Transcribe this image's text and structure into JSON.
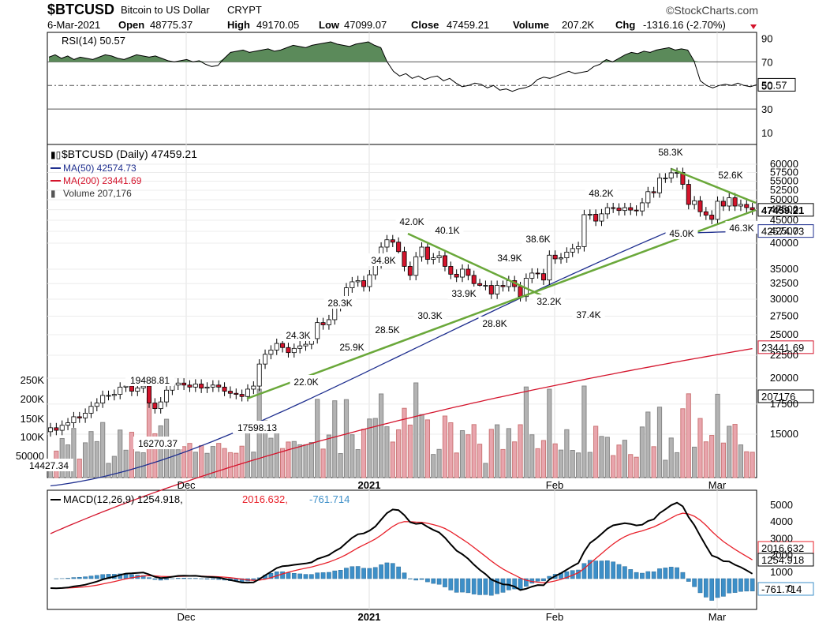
{
  "header": {
    "symbol": "$BTCUSD",
    "name": "Bitcoin to US Dollar",
    "exchange": "CRYPT",
    "brand": "©StockCharts.com",
    "date": "6-Mar-2021",
    "open_label": "Open",
    "open": "48775.37",
    "high_label": "High",
    "high": "49170.05",
    "low_label": "Low",
    "low": "47099.07",
    "close_label": "Close",
    "close": "47459.21",
    "volume_label": "Volume",
    "volume": "207.2K",
    "chg_label": "Chg",
    "chg": "-1316.16 (-2.70%)"
  },
  "colors": {
    "up": "#ffffff",
    "down": "#d4142c",
    "wick": "#000000",
    "ma50": "#1f2f8f",
    "ma200": "#d4142c",
    "trend": "#6aa83a",
    "rsi_fill": "#5b8a5a",
    "vol_up": "#b3b3b3",
    "vol_down": "#e8a5ad",
    "macd_line": "#000000",
    "signal_line": "#e8202a",
    "hist": "#3d8fc8"
  },
  "chart_data": [
    {
      "type": "line",
      "panel": "rsi",
      "legend": "RSI(14) 50.57",
      "ylim": [
        0,
        100
      ],
      "yticks": [
        "90",
        "70",
        "50",
        "30",
        "10"
      ],
      "levels": [
        70,
        30
      ],
      "last_label": "50.57",
      "values": [
        74,
        76,
        73,
        75,
        72,
        74,
        73,
        72,
        74,
        76,
        75,
        73,
        72,
        74,
        76,
        75,
        74,
        75,
        73,
        71,
        70,
        71,
        72,
        70,
        71,
        68,
        66,
        67,
        73,
        78,
        79,
        80,
        78,
        79,
        80,
        81,
        79,
        80,
        82,
        84,
        83,
        82,
        84,
        85,
        86,
        87,
        85,
        84,
        83,
        85,
        86,
        87,
        84,
        82,
        70,
        62,
        58,
        60,
        56,
        58,
        55,
        57,
        58,
        54,
        56,
        52,
        49,
        50,
        52,
        51,
        48,
        50,
        46,
        47,
        45,
        47,
        48,
        50,
        55,
        57,
        56,
        58,
        60,
        62,
        60,
        61,
        62,
        66,
        68,
        72,
        70,
        73,
        76,
        78,
        77,
        79,
        78,
        80,
        81,
        82,
        80,
        81,
        80,
        71,
        54,
        50,
        48,
        50,
        51,
        50,
        52,
        50,
        49,
        50.57
      ]
    },
    {
      "type": "candlestick",
      "panel": "price",
      "legend": {
        "title": "$BTCUSD (Daily) 47459.21",
        "ma50": "MA(50) 42574.73",
        "ma200": "MA(200) 23441.69",
        "volume": "Volume 207,176"
      },
      "scale": "log",
      "yticks": [
        "60000",
        "57500",
        "55000",
        "52500",
        "50000",
        "47500",
        "45000",
        "42500",
        "40000",
        "35000",
        "32500",
        "30000",
        "27500",
        "25000",
        "22500",
        "20000",
        "17500",
        "15000"
      ],
      "volume_ticks": [
        "250K",
        "200K",
        "150K",
        "100K",
        "50000"
      ],
      "x_labels": [
        "Dec",
        "2021",
        "Feb",
        "Mar"
      ],
      "last_labels": {
        "close": "47459.21",
        "ma50": "42574.73",
        "ma200": "23441.69",
        "volume": "207176"
      },
      "annotations": [
        "14427.34",
        "19488.81",
        "16270.37",
        "17598.13",
        "22.0K",
        "24.3K",
        "25.9K",
        "28.3K",
        "28.5K",
        "34.8K",
        "42.0K",
        "30.3K",
        "40.1K",
        "33.9K",
        "28.8K",
        "34.9K",
        "32.2K",
        "38.6K",
        "37.4K",
        "48.2K",
        "58.3K",
        "45.0K",
        "52.6K",
        "46.3K"
      ],
      "close": [
        15500,
        15300,
        15700,
        15900,
        16400,
        16300,
        16700,
        17300,
        17600,
        18300,
        18300,
        18400,
        19100,
        19200,
        18700,
        19000,
        19200,
        17600,
        17100,
        17700,
        18800,
        19300,
        19500,
        19300,
        19100,
        19400,
        19000,
        19100,
        19300,
        19100,
        18700,
        18500,
        18400,
        18200,
        18900,
        19200,
        21500,
        22600,
        23100,
        23900,
        23400,
        22800,
        23300,
        23600,
        23800,
        24500,
        26600,
        26300,
        27000,
        28900,
        29300,
        31800,
        32800,
        33000,
        32000,
        34000,
        36000,
        39200,
        40700,
        40200,
        38300,
        35500,
        33900,
        37300,
        39200,
        36800,
        37100,
        37500,
        35500,
        34100,
        33600,
        35000,
        33900,
        32500,
        32200,
        32200,
        30800,
        32200,
        32000,
        33000,
        32000,
        30400,
        33400,
        34300,
        34200,
        33100,
        37600,
        36900,
        37100,
        38200,
        38900,
        39300,
        46300,
        46400,
        44800,
        46500,
        48000,
        47900,
        47300,
        48000,
        47400,
        47200,
        49200,
        52100,
        51800,
        55900,
        55900,
        57400,
        57500,
        54100,
        48800,
        49700,
        47000,
        46200,
        45200,
        49600,
        48400,
        50500,
        48400,
        48800,
        48000,
        47459
      ]
    },
    {
      "type": "line",
      "panel": "macd",
      "legend": "MACD(12,26,9) 1254.918, 2016.632, -761.714",
      "legend_parts": [
        "MACD(12,26,9) 1254.918",
        "2016.632",
        "-761.714"
      ],
      "yticks": [
        "5000",
        "4000",
        "3000",
        "2000",
        "1000",
        "0"
      ],
      "last_labels": {
        "macd": "1254.918",
        "signal": "2016.632",
        "hist": "-761.714"
      },
      "x_labels": [
        "Dec",
        "2021",
        "Feb",
        "Mar"
      ]
    }
  ]
}
